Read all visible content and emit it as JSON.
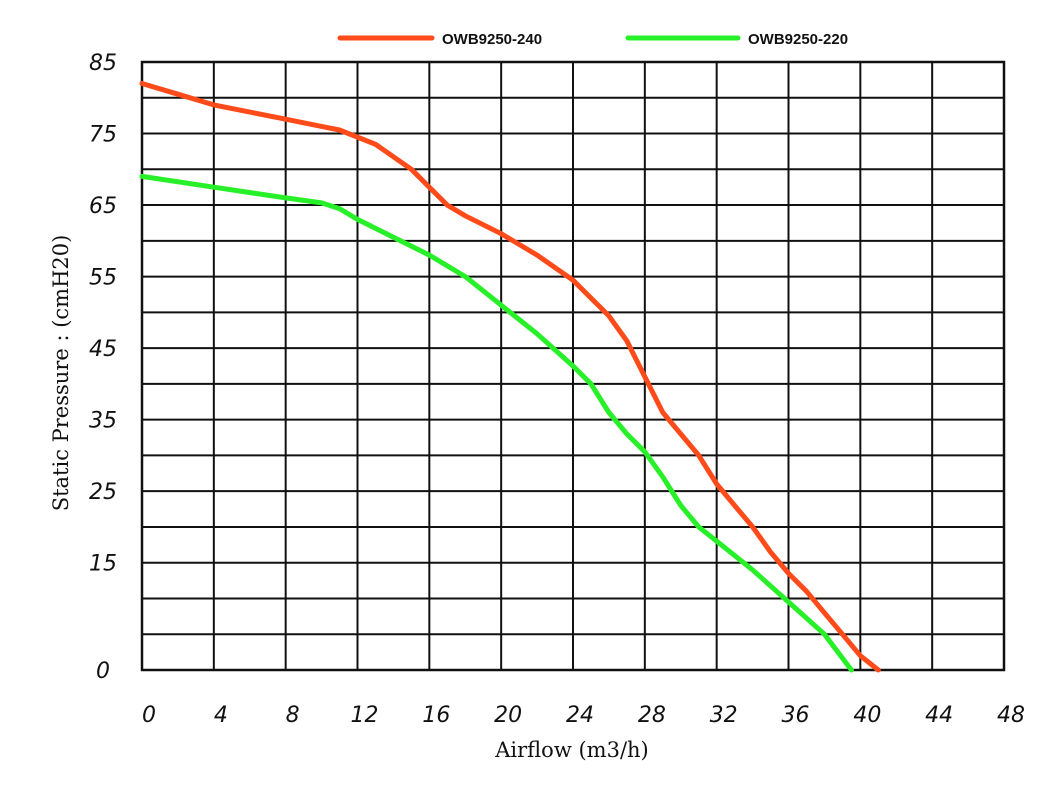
{
  "chart_data": {
    "type": "line",
    "title": "",
    "xlabel": "Airflow (m3/h)",
    "ylabel": "Static Pressure : (cmH20)",
    "xlim": [
      0,
      48
    ],
    "ylim": [
      0,
      85
    ],
    "x_ticks": [
      "0",
      "4",
      "8",
      "12",
      "16",
      "20",
      "24",
      "28",
      "32",
      "36",
      "40",
      "44",
      "48"
    ],
    "y_ticks": [
      {
        "value": 0,
        "label": "0"
      },
      {
        "value": 15,
        "label": "15"
      },
      {
        "value": 25,
        "label": "25"
      },
      {
        "value": 35,
        "label": "35"
      },
      {
        "value": 45,
        "label": "45"
      },
      {
        "value": 55,
        "label": "55"
      },
      {
        "value": 65,
        "label": "65"
      },
      {
        "value": 75,
        "label": "75"
      },
      {
        "value": 85,
        "label": "85"
      }
    ],
    "grid": true,
    "legend_position": "top-center",
    "series": [
      {
        "name": "OWB9250-240",
        "color": "#ff4a1a",
        "points": [
          [
            0,
            82
          ],
          [
            2,
            80.5
          ],
          [
            4,
            79
          ],
          [
            6,
            78
          ],
          [
            8,
            77
          ],
          [
            10,
            76
          ],
          [
            11,
            75.5
          ],
          [
            13,
            73.5
          ],
          [
            15,
            70
          ],
          [
            16,
            67.5
          ],
          [
            17,
            65
          ],
          [
            18,
            63.5
          ],
          [
            20,
            61
          ],
          [
            22,
            58
          ],
          [
            24,
            54.5
          ],
          [
            26,
            49.5
          ],
          [
            27,
            46
          ],
          [
            28,
            41
          ],
          [
            29,
            36
          ],
          [
            30,
            33
          ],
          [
            31,
            30
          ],
          [
            32,
            26
          ],
          [
            33,
            23
          ],
          [
            34,
            20
          ],
          [
            35,
            16.5
          ],
          [
            36,
            13.5
          ],
          [
            37,
            11
          ],
          [
            38,
            8
          ],
          [
            39,
            5
          ],
          [
            40,
            2
          ],
          [
            41,
            0
          ]
        ]
      },
      {
        "name": "OWB9250-220",
        "color": "#28f028",
        "points": [
          [
            0,
            69
          ],
          [
            4,
            67.5
          ],
          [
            8,
            66
          ],
          [
            10,
            65.3
          ],
          [
            11,
            64.5
          ],
          [
            12,
            63
          ],
          [
            14,
            60.5
          ],
          [
            16,
            58
          ],
          [
            18,
            55
          ],
          [
            20,
            51
          ],
          [
            22,
            47
          ],
          [
            24,
            42.5
          ],
          [
            25,
            40
          ],
          [
            26,
            36
          ],
          [
            27,
            33
          ],
          [
            28,
            30.5
          ],
          [
            29,
            27
          ],
          [
            30,
            23
          ],
          [
            31,
            20
          ],
          [
            32,
            18
          ],
          [
            34,
            14
          ],
          [
            36,
            9.5
          ],
          [
            38,
            5
          ],
          [
            39.5,
            0
          ]
        ]
      }
    ]
  }
}
